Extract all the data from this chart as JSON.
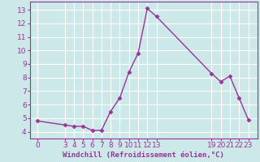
{
  "x": [
    0,
    3,
    4,
    5,
    6,
    7,
    8,
    9,
    10,
    11,
    12,
    13,
    19,
    20,
    21,
    22,
    23
  ],
  "y": [
    4.8,
    4.5,
    4.4,
    4.4,
    4.1,
    4.1,
    5.5,
    6.5,
    8.4,
    9.8,
    13.1,
    12.5,
    8.3,
    7.7,
    8.1,
    6.5,
    4.9
  ],
  "line_color": "#993399",
  "marker": "D",
  "marker_size": 2.5,
  "line_width": 1.0,
  "bg_color": "#cce8e8",
  "grid_color": "#ffffff",
  "xlabel": "Windchill (Refroidissement éolien,°C)",
  "xlabel_color": "#993399",
  "xlabel_fontsize": 6.5,
  "xlim": [
    -0.8,
    24.0
  ],
  "ylim": [
    3.5,
    13.6
  ],
  "yticks": [
    4,
    5,
    6,
    7,
    8,
    9,
    10,
    11,
    12,
    13
  ],
  "xticks": [
    0,
    3,
    4,
    5,
    6,
    7,
    8,
    9,
    10,
    11,
    12,
    13,
    19,
    20,
    21,
    22,
    23
  ],
  "tick_color": "#993399",
  "tick_fontsize": 6.5,
  "axis_color": "#993399"
}
